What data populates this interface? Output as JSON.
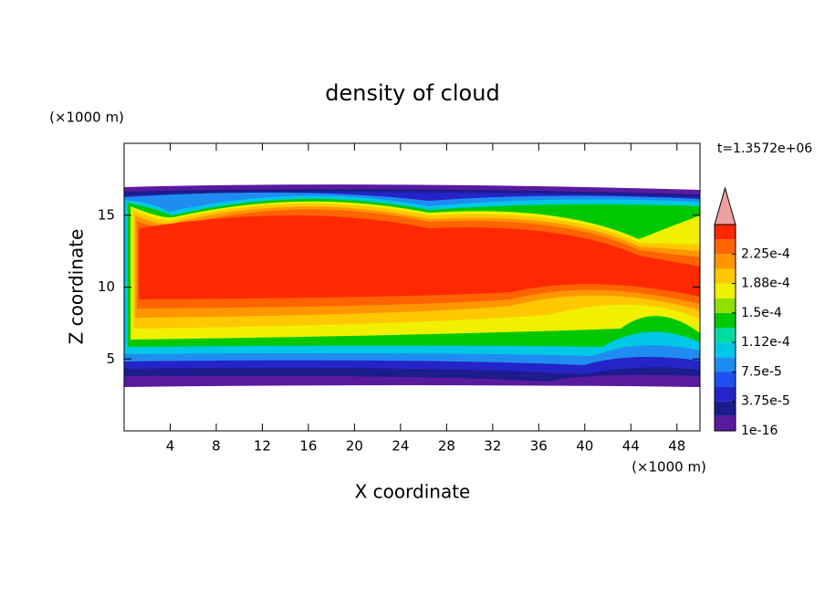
{
  "chart_data": {
    "type": "contour",
    "title": "density of cloud",
    "x_label": "X coordinate",
    "y_label": "Z coordinate",
    "x_unit": "(×1000 m)",
    "y_unit": "(×1000 m)",
    "annotation": "t=1.3572e+06",
    "xlim": [
      0,
      50
    ],
    "xticks": [
      4,
      8,
      12,
      16,
      20,
      24,
      28,
      32,
      36,
      40,
      44,
      48
    ],
    "ylim": [
      0,
      20
    ],
    "yticks": [
      5,
      10,
      15
    ],
    "colorbar": {
      "lim": [
        1e-16,
        0.0002625
      ],
      "colors": [
        "#5a1aa0",
        "#1c1c8c",
        "#2424c8",
        "#1e50f0",
        "#1e8cf0",
        "#00c8e6",
        "#00dca0",
        "#00c800",
        "#90e000",
        "#f0f000",
        "#ffc800",
        "#ff9600",
        "#ff6400",
        "#ff2800"
      ],
      "extend_color": "#f0a0a0",
      "ticks": [
        {
          "value": 1e-16,
          "label": "1e-16"
        },
        {
          "value": 3.75e-05,
          "label": "3.75e-5"
        },
        {
          "value": 7.5e-05,
          "label": "7.5e-5"
        },
        {
          "value": 0.0001125,
          "label": "1.12e-4"
        },
        {
          "value": 0.00015,
          "label": "1.5e-4"
        },
        {
          "value": 0.0001875,
          "label": "1.88e-4"
        },
        {
          "value": 0.000225,
          "label": "2.25e-4"
        }
      ]
    }
  }
}
